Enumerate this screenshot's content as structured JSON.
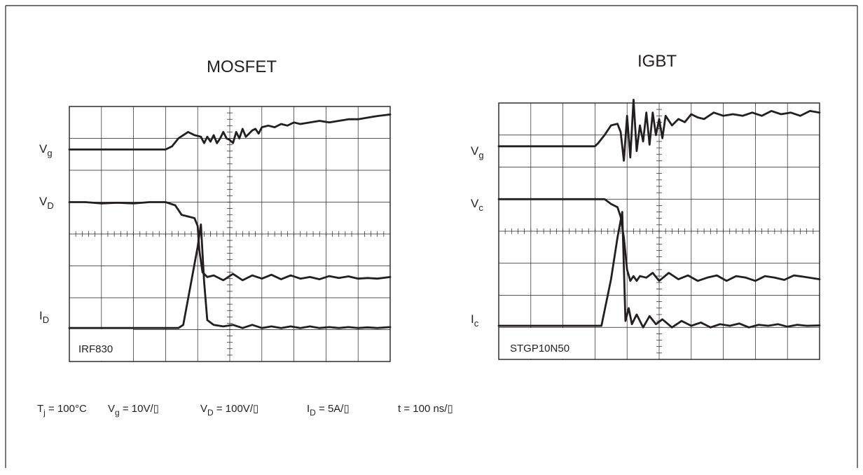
{
  "chart_data": [
    {
      "type": "line",
      "title": "MOSFET",
      "device_label": "IRF830",
      "grid": true,
      "grid_divisions": {
        "x": 10,
        "y": 8
      },
      "xlim": [
        0,
        10
      ],
      "ylim": [
        0,
        8
      ],
      "channels": [
        {
          "name": "V",
          "sub": "g",
          "kind": "gate"
        },
        {
          "name": "V",
          "sub": "D",
          "kind": "voltage"
        },
        {
          "name": "I",
          "sub": "D",
          "kind": "current"
        }
      ],
      "series": [
        {
          "name": "Vg",
          "x": [
            0,
            3.0,
            3.2,
            3.4,
            3.7,
            3.9,
            4.1,
            4.2,
            4.3,
            4.4,
            4.5,
            4.6,
            4.7,
            4.8,
            4.9,
            5.0,
            5.1,
            5.2,
            5.3,
            5.4,
            5.5,
            5.6,
            5.7,
            5.8,
            5.9,
            6.0,
            6.2,
            6.4,
            6.6,
            6.8,
            7.0,
            7.2,
            7.5,
            7.8,
            8.1,
            8.4,
            8.7,
            9.0,
            9.3,
            9.6,
            10.0
          ],
          "values": [
            6.65,
            6.65,
            6.75,
            7.0,
            7.2,
            7.1,
            7.05,
            6.85,
            7.05,
            6.9,
            7.1,
            6.85,
            7.0,
            7.2,
            7.0,
            6.95,
            6.85,
            7.2,
            7.0,
            7.3,
            7.05,
            7.15,
            7.25,
            7.3,
            7.15,
            7.35,
            7.4,
            7.35,
            7.45,
            7.4,
            7.5,
            7.45,
            7.5,
            7.55,
            7.5,
            7.55,
            7.6,
            7.6,
            7.65,
            7.7,
            7.75
          ]
        },
        {
          "name": "VD",
          "x": [
            0,
            0.5,
            1.0,
            1.5,
            2.0,
            2.5,
            3.0,
            3.3,
            3.5,
            3.7,
            3.9,
            4.0,
            4.05,
            4.15,
            4.3,
            4.5,
            4.8,
            5.1,
            5.4,
            5.7,
            6.0,
            6.3,
            6.6,
            6.9,
            7.2,
            7.5,
            7.8,
            8.1,
            8.4,
            8.7,
            9.0,
            9.3,
            9.6,
            10.0
          ],
          "values": [
            5.0,
            5.0,
            4.96,
            4.98,
            4.96,
            5.0,
            5.0,
            4.9,
            4.6,
            4.55,
            4.5,
            4.25,
            3.5,
            2.8,
            2.65,
            2.7,
            2.55,
            2.75,
            2.55,
            2.7,
            2.6,
            2.72,
            2.58,
            2.7,
            2.6,
            2.65,
            2.58,
            2.68,
            2.62,
            2.67,
            2.6,
            2.62,
            2.6,
            2.65
          ]
        },
        {
          "name": "ID",
          "x": [
            0,
            1.0,
            2.0,
            3.0,
            3.4,
            3.55,
            3.8,
            4.0,
            4.1,
            4.2,
            4.3,
            4.5,
            4.8,
            5.1,
            5.4,
            5.7,
            6.0,
            6.3,
            6.6,
            6.9,
            7.2,
            7.5,
            7.8,
            8.1,
            8.4,
            8.7,
            9.0,
            9.3,
            9.6,
            10.0
          ],
          "values": [
            1.05,
            1.05,
            1.05,
            1.05,
            1.05,
            1.15,
            2.5,
            3.6,
            4.3,
            2.5,
            1.3,
            1.15,
            1.1,
            1.15,
            1.05,
            1.15,
            1.05,
            1.1,
            1.05,
            1.1,
            1.05,
            1.1,
            1.05,
            1.08,
            1.05,
            1.08,
            1.05,
            1.07,
            1.05,
            1.08
          ]
        }
      ]
    },
    {
      "type": "line",
      "title": "IGBT",
      "device_label": "STGP10N50",
      "grid": true,
      "grid_divisions": {
        "x": 10,
        "y": 8
      },
      "xlim": [
        0,
        10
      ],
      "ylim": [
        0,
        8
      ],
      "channels": [
        {
          "name": "V",
          "sub": "g",
          "kind": "gate"
        },
        {
          "name": "V",
          "sub": "c",
          "kind": "voltage"
        },
        {
          "name": "I",
          "sub": "c",
          "kind": "current"
        }
      ],
      "series": [
        {
          "name": "Vg",
          "x": [
            0,
            3.0,
            3.1,
            3.3,
            3.5,
            3.7,
            3.8,
            3.9,
            4.0,
            4.1,
            4.2,
            4.3,
            4.4,
            4.5,
            4.6,
            4.7,
            4.8,
            4.9,
            5.0,
            5.1,
            5.2,
            5.4,
            5.6,
            5.8,
            6.0,
            6.2,
            6.4,
            6.7,
            7.0,
            7.3,
            7.6,
            7.9,
            8.2,
            8.5,
            8.8,
            9.1,
            9.4,
            9.7,
            10.0
          ],
          "values": [
            6.65,
            6.65,
            6.75,
            7.0,
            7.3,
            7.35,
            7.1,
            6.2,
            7.6,
            6.3,
            8.1,
            6.5,
            7.3,
            6.8,
            7.7,
            6.7,
            7.7,
            7.0,
            7.5,
            6.9,
            7.6,
            7.3,
            7.5,
            7.4,
            7.65,
            7.55,
            7.5,
            7.7,
            7.6,
            7.65,
            7.6,
            7.7,
            7.6,
            7.75,
            7.65,
            7.7,
            7.6,
            7.75,
            7.7
          ]
        },
        {
          "name": "Vc",
          "x": [
            0,
            1.0,
            2.0,
            3.0,
            3.3,
            3.5,
            3.7,
            3.8,
            3.9,
            4.0,
            4.1,
            4.2,
            4.3,
            4.4,
            4.6,
            4.8,
            5.0,
            5.3,
            5.6,
            5.9,
            6.2,
            6.5,
            6.8,
            7.1,
            7.4,
            7.7,
            8.0,
            8.3,
            8.6,
            8.9,
            9.2,
            9.5,
            10.0
          ],
          "values": [
            5.0,
            5.0,
            5.0,
            5.0,
            5.0,
            4.85,
            4.75,
            4.45,
            3.8,
            2.8,
            2.45,
            2.6,
            2.45,
            2.6,
            2.55,
            2.7,
            2.45,
            2.7,
            2.5,
            2.62,
            2.45,
            2.55,
            2.62,
            2.45,
            2.6,
            2.55,
            2.45,
            2.6,
            2.55,
            2.48,
            2.62,
            2.58,
            2.5
          ]
        },
        {
          "name": "Ic",
          "x": [
            0,
            1.0,
            2.0,
            3.0,
            3.2,
            3.5,
            3.7,
            3.85,
            3.95,
            4.05,
            4.15,
            4.3,
            4.5,
            4.7,
            4.9,
            5.1,
            5.4,
            5.7,
            6.0,
            6.3,
            6.6,
            6.9,
            7.2,
            7.5,
            7.8,
            8.1,
            8.4,
            8.7,
            9.0,
            9.3,
            9.6,
            10.0
          ],
          "values": [
            1.05,
            1.05,
            1.05,
            1.05,
            1.05,
            2.5,
            3.8,
            4.6,
            1.2,
            1.6,
            1.1,
            1.4,
            1.0,
            1.35,
            1.1,
            1.25,
            1.0,
            1.2,
            1.05,
            1.15,
            1.0,
            1.1,
            1.05,
            1.12,
            1.0,
            1.08,
            1.05,
            1.1,
            1.02,
            1.08,
            1.05,
            1.06
          ]
        }
      ]
    }
  ],
  "conditions": [
    {
      "name": "T",
      "sub": "j",
      "value": " = 100°C"
    },
    {
      "name": "V",
      "sub": "g",
      "value": " = 10V/▯"
    },
    {
      "name": "V",
      "sub": "D",
      "value": " = 100V/▯"
    },
    {
      "name": "I",
      "sub": "D",
      "value": " = 5A/▯"
    },
    {
      "name": "t = 100 ns/▯",
      "sub": "",
      "value": ""
    }
  ]
}
